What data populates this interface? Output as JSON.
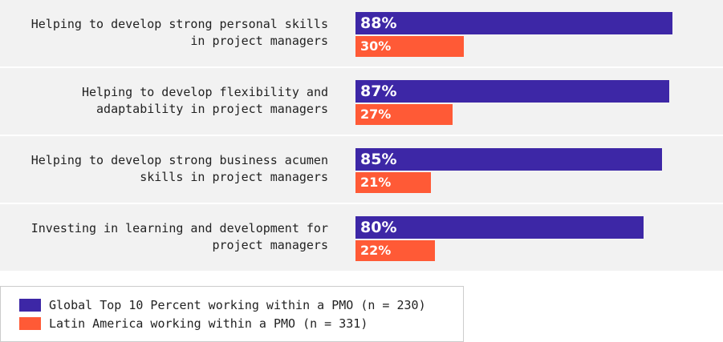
{
  "chart_data": {
    "type": "bar",
    "orientation": "horizontal",
    "categories": [
      "Helping to develop strong personal skills\nin project managers",
      "Helping to develop flexibility and\nadaptability in project managers",
      "Helping to develop strong business acumen\nskills in project managers",
      "Investing in learning and development for\nproject managers"
    ],
    "series": [
      {
        "name": "Global Top 10 Percent working within a PMO (n = 230)",
        "color": "#3d27a6",
        "values": [
          88,
          87,
          85,
          80
        ],
        "value_labels": [
          "88%",
          "87%",
          "85%",
          "80%"
        ]
      },
      {
        "name": "Latin America working within a PMO (n = 331)",
        "color": "#ff5a36",
        "values": [
          30,
          27,
          21,
          22
        ],
        "value_labels": [
          "30%",
          "27%",
          "21%",
          "22%"
        ]
      }
    ],
    "xlim": [
      0,
      100
    ]
  }
}
